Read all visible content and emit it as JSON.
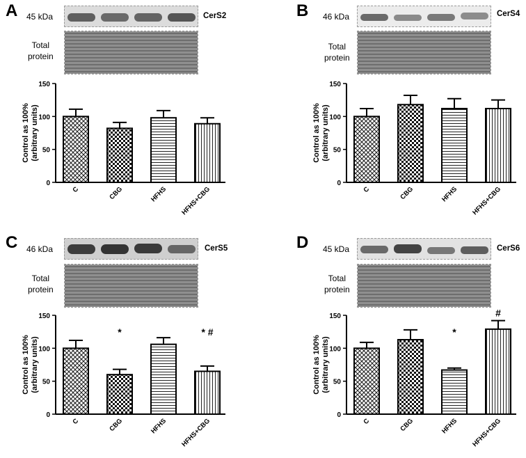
{
  "ylabel_line1": "Control as 100%",
  "ylabel_line2": "(arbitrary units)",
  "total_protein_line1": "Total",
  "total_protein_line2": "protein",
  "panels": [
    {
      "letter": "A",
      "kda": "45 kDa",
      "protein": "CerS2"
    },
    {
      "letter": "B",
      "kda": "46 kDa",
      "protein": "CerS4"
    },
    {
      "letter": "C",
      "kda": "46 kDa",
      "protein": "CerS5"
    },
    {
      "letter": "D",
      "kda": "45 kDa",
      "protein": "CerS6"
    }
  ],
  "chart_data": [
    {
      "type": "bar",
      "panel": "A",
      "categories": [
        "C",
        "CBG",
        "HFHS",
        "HFHS+CBG"
      ],
      "values": [
        100,
        82,
        98,
        89
      ],
      "errors": [
        11,
        9,
        11,
        9
      ],
      "annotations": [
        "",
        "",
        "",
        ""
      ],
      "ylim": [
        0,
        150
      ],
      "yticks": [
        0,
        50,
        100,
        150
      ]
    },
    {
      "type": "bar",
      "panel": "B",
      "categories": [
        "C",
        "CBG",
        "HFHS",
        "HFHS+CBG"
      ],
      "values": [
        100,
        118,
        112,
        112
      ],
      "errors": [
        12,
        14,
        15,
        13
      ],
      "annotations": [
        "",
        "",
        "",
        ""
      ],
      "ylim": [
        0,
        150
      ],
      "yticks": [
        0,
        50,
        100,
        150
      ]
    },
    {
      "type": "bar",
      "panel": "C",
      "categories": [
        "C",
        "CBG",
        "HFHS",
        "HFHS+CBG"
      ],
      "values": [
        100,
        60,
        106,
        65
      ],
      "errors": [
        12,
        8,
        10,
        8
      ],
      "annotations": [
        "",
        "*",
        "",
        "* #"
      ],
      "ylim": [
        0,
        150
      ],
      "yticks": [
        0,
        50,
        100,
        150
      ]
    },
    {
      "type": "bar",
      "panel": "D",
      "categories": [
        "C",
        "CBG",
        "HFHS",
        "HFHS+CBG"
      ],
      "values": [
        100,
        113,
        67,
        129
      ],
      "errors": [
        9,
        15,
        3,
        13
      ],
      "annotations": [
        "",
        "",
        "*",
        "#"
      ],
      "ylim": [
        0,
        150
      ],
      "yticks": [
        0,
        50,
        100,
        150
      ]
    }
  ]
}
